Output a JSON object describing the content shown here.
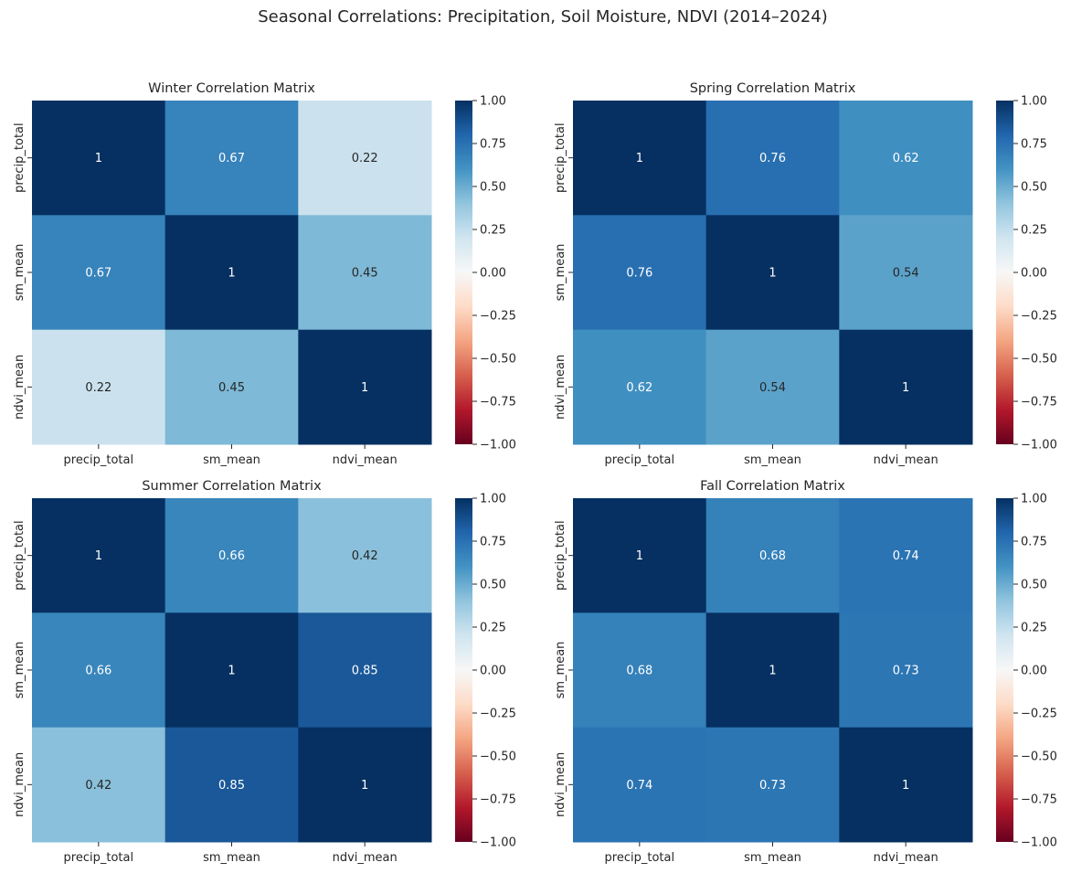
{
  "suptitle": "Seasonal Correlations: Precipitation, Soil Moisture, NDVI (2014–2024)",
  "colormap": {
    "name": "RdBu",
    "vmin": -1,
    "vmax": 1,
    "ticks": [
      "1.00",
      "0.75",
      "0.50",
      "0.25",
      "0.00",
      "−0.25",
      "−0.50",
      "−0.75",
      "−1.00"
    ],
    "tick_values": [
      1.0,
      0.75,
      0.5,
      0.25,
      0.0,
      -0.25,
      -0.5,
      -0.75,
      -1.0
    ]
  },
  "chart_data": [
    {
      "type": "heatmap",
      "title": "Winter Correlation Matrix",
      "x_labels": [
        "precip_total",
        "sm_mean",
        "ndvi_mean"
      ],
      "y_labels": [
        "precip_total",
        "sm_mean",
        "ndvi_mean"
      ],
      "values": [
        [
          1,
          0.67,
          0.22
        ],
        [
          0.67,
          1,
          0.45
        ],
        [
          0.22,
          0.45,
          1
        ]
      ],
      "annotations": [
        [
          "1",
          "0.67",
          "0.22"
        ],
        [
          "0.67",
          "1",
          "0.45"
        ],
        [
          "0.22",
          "0.45",
          "1"
        ]
      ]
    },
    {
      "type": "heatmap",
      "title": "Spring Correlation Matrix",
      "x_labels": [
        "precip_total",
        "sm_mean",
        "ndvi_mean"
      ],
      "y_labels": [
        "precip_total",
        "sm_mean",
        "ndvi_mean"
      ],
      "values": [
        [
          1,
          0.76,
          0.62
        ],
        [
          0.76,
          1,
          0.54
        ],
        [
          0.62,
          0.54,
          1
        ]
      ],
      "annotations": [
        [
          "1",
          "0.76",
          "0.62"
        ],
        [
          "0.76",
          "1",
          "0.54"
        ],
        [
          "0.62",
          "0.54",
          "1"
        ]
      ]
    },
    {
      "type": "heatmap",
      "title": "Summer Correlation Matrix",
      "x_labels": [
        "precip_total",
        "sm_mean",
        "ndvi_mean"
      ],
      "y_labels": [
        "precip_total",
        "sm_mean",
        "ndvi_mean"
      ],
      "values": [
        [
          1,
          0.66,
          0.42
        ],
        [
          0.66,
          1,
          0.85
        ],
        [
          0.42,
          0.85,
          1
        ]
      ],
      "annotations": [
        [
          "1",
          "0.66",
          "0.42"
        ],
        [
          "0.66",
          "1",
          "0.85"
        ],
        [
          "0.42",
          "0.85",
          "1"
        ]
      ]
    },
    {
      "type": "heatmap",
      "title": "Fall Correlation Matrix",
      "x_labels": [
        "precip_total",
        "sm_mean",
        "ndvi_mean"
      ],
      "y_labels": [
        "precip_total",
        "sm_mean",
        "ndvi_mean"
      ],
      "values": [
        [
          1,
          0.68,
          0.74
        ],
        [
          0.68,
          1,
          0.73
        ],
        [
          0.74,
          0.73,
          1
        ]
      ],
      "annotations": [
        [
          "1",
          "0.68",
          "0.74"
        ],
        [
          "0.68",
          "1",
          "0.73"
        ],
        [
          "0.74",
          "0.73",
          "1"
        ]
      ]
    }
  ]
}
